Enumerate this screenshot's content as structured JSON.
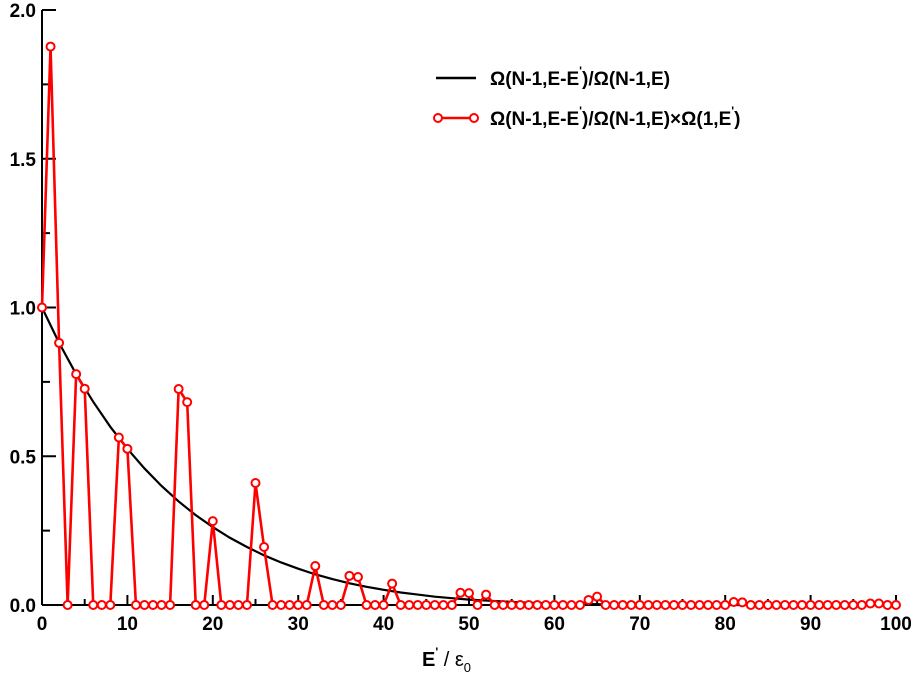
{
  "chart_data": {
    "type": "line",
    "xlabel": "E' / ε0",
    "ylabel": "",
    "xlim": [
      0,
      100
    ],
    "ylim": [
      0,
      2
    ],
    "x_ticks": [
      0,
      10,
      20,
      30,
      40,
      50,
      60,
      70,
      80,
      90,
      100
    ],
    "y_ticks": [
      "0.0",
      "0.5",
      "1.0",
      "1.5",
      "2.0"
    ],
    "grid": false,
    "legend_position": "top-right",
    "series": [
      {
        "name": "Ω(N-1,E-E')/Ω(N-1,E)",
        "color": "#000000",
        "marker": "none",
        "x": [
          0,
          2,
          4,
          6,
          8,
          10,
          12,
          14,
          16,
          18,
          20,
          22,
          24,
          26,
          28,
          30,
          32,
          34,
          36,
          38,
          40,
          42,
          44,
          46,
          48,
          50,
          52,
          54,
          56,
          58,
          60,
          62,
          64,
          66,
          68,
          70,
          72,
          74,
          76,
          78,
          80,
          82,
          84,
          86,
          88,
          90,
          92,
          94,
          96,
          98,
          100
        ],
        "y": [
          1.0,
          0.881,
          0.776,
          0.683,
          0.599,
          0.525,
          0.459,
          0.4,
          0.348,
          0.302,
          0.262,
          0.226,
          0.195,
          0.167,
          0.143,
          0.122,
          0.103,
          0.087,
          0.073,
          0.061,
          0.051,
          0.042,
          0.035,
          0.028,
          0.023,
          0.018,
          0.015,
          0.012,
          0.009,
          0.007,
          0.0055,
          0.0042,
          0.0031,
          0.0023,
          0.0016,
          0.0011,
          0.0008,
          0.0005,
          0.0003,
          0.0002,
          0.0001,
          5e-05,
          3e-05,
          1e-05,
          0.0,
          0.0,
          0.0,
          0.0,
          0.0,
          0.0,
          0.0
        ]
      },
      {
        "name": "Ω(N-1,E-E')/Ω(N-1,E)×Ω(1,E')",
        "color": "#ff0000",
        "marker": "circle",
        "x": [
          0,
          1,
          2,
          3,
          4,
          5,
          6,
          7,
          8,
          9,
          10,
          11,
          12,
          13,
          14,
          15,
          16,
          17,
          18,
          19,
          20,
          21,
          22,
          23,
          24,
          25,
          26,
          27,
          28,
          29,
          30,
          31,
          32,
          33,
          34,
          35,
          36,
          37,
          38,
          39,
          40,
          41,
          42,
          43,
          44,
          45,
          46,
          47,
          48,
          49,
          50,
          51,
          52,
          53,
          54,
          55,
          56,
          57,
          58,
          59,
          60,
          61,
          62,
          63,
          64,
          65,
          66,
          67,
          68,
          69,
          70,
          71,
          72,
          73,
          74,
          75,
          76,
          77,
          78,
          79,
          80,
          81,
          82,
          83,
          84,
          85,
          86,
          87,
          88,
          89,
          90,
          91,
          92,
          93,
          94,
          95,
          96,
          97,
          98,
          99,
          100
        ],
        "y": [
          1.0,
          1.877,
          0.881,
          0,
          0.776,
          0.727,
          0,
          0,
          0,
          0.563,
          0.525,
          0,
          0,
          0,
          0,
          0,
          0.726,
          0.682,
          0,
          0,
          0.282,
          0,
          0,
          0,
          0,
          0.41,
          0.195,
          0,
          0,
          0,
          0,
          0,
          0.131,
          0,
          0,
          0,
          0.098,
          0.094,
          0,
          0,
          0,
          0.072,
          0,
          0,
          0,
          0,
          0,
          0,
          0,
          0.041,
          0.04,
          0,
          0.035,
          0,
          0,
          0,
          0,
          0,
          0,
          0,
          0,
          0,
          0,
          0,
          0.017,
          0.028,
          0,
          0,
          0,
          0,
          0,
          0,
          0,
          0,
          0,
          0,
          0,
          0,
          0,
          0,
          0,
          0.01,
          0.009,
          0,
          0,
          0,
          0,
          0,
          0,
          0,
          0,
          0,
          0,
          0,
          0,
          0,
          0,
          0.005,
          0.005,
          0,
          0
        ]
      }
    ]
  }
}
